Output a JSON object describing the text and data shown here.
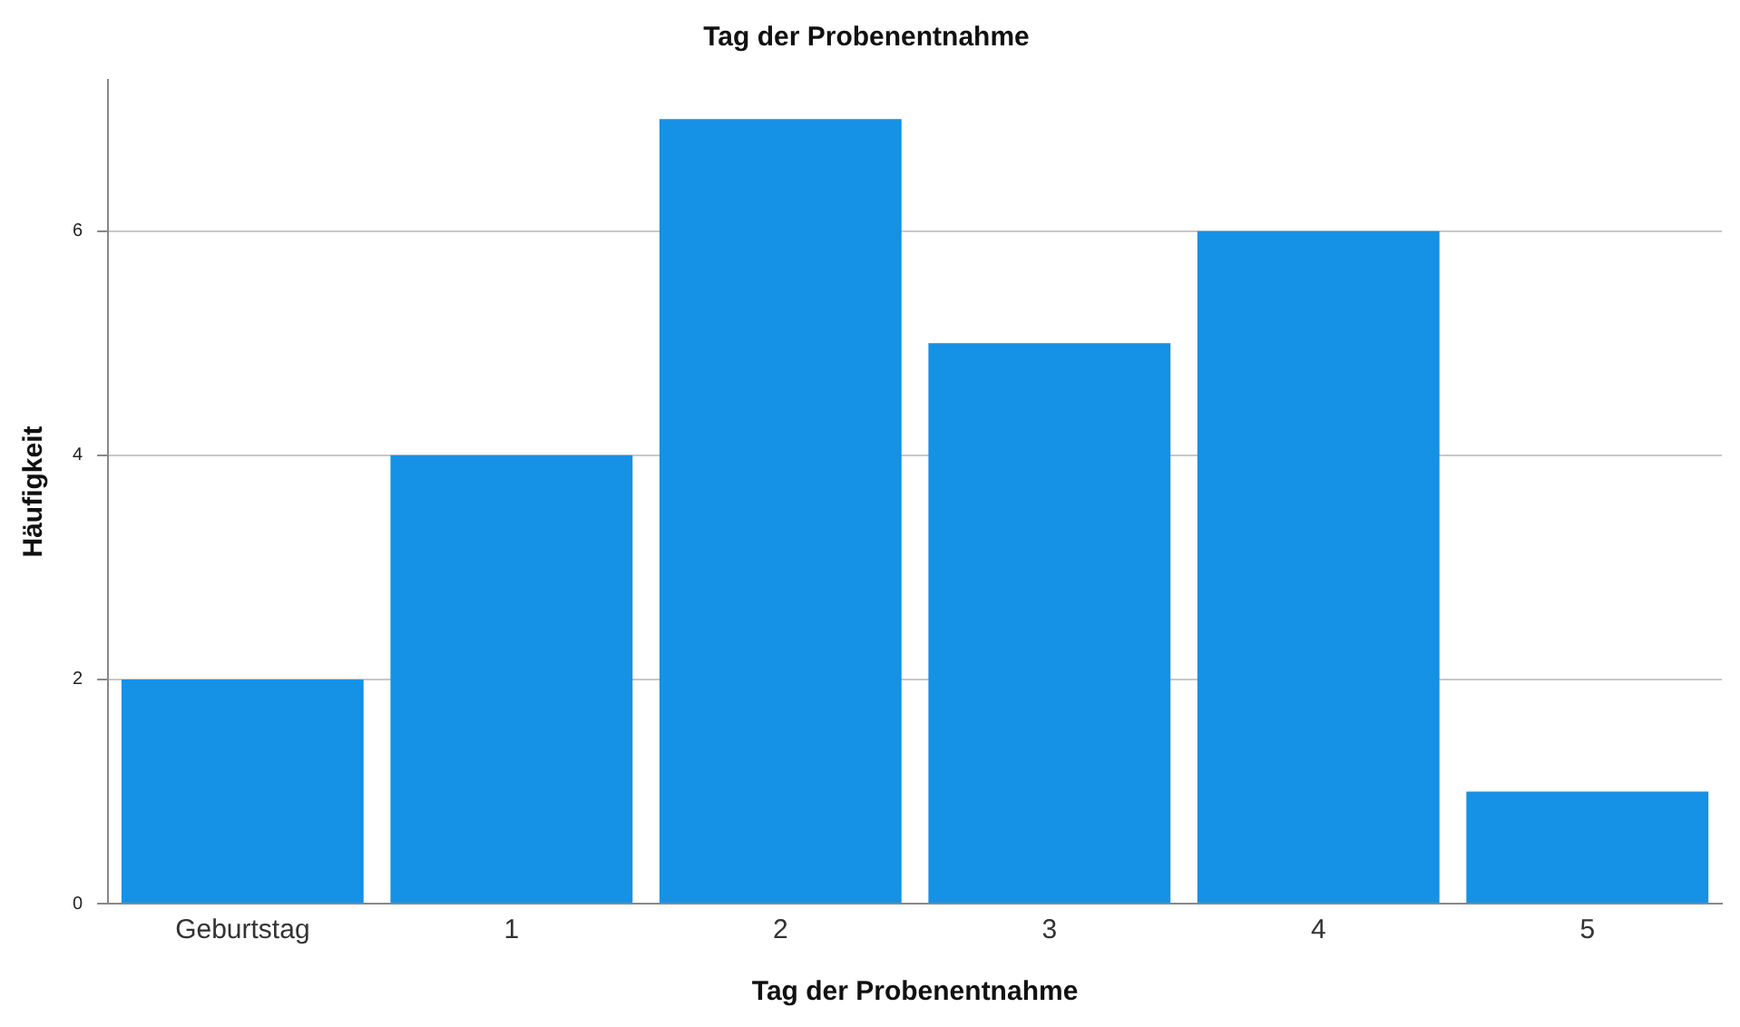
{
  "chart_data": {
    "type": "bar",
    "title": "Tag der Probenentnahme",
    "xlabel": "Tag der Probenentnahme",
    "ylabel": "Häufigkeit",
    "categories": [
      "Geburtstag",
      "1",
      "2",
      "3",
      "4",
      "5"
    ],
    "values": [
      2,
      4,
      7,
      5,
      6,
      1
    ],
    "color": "#1591e6",
    "ylim": [
      0,
      7.35
    ],
    "yticks": [
      0,
      2,
      4,
      6
    ],
    "grid": "y",
    "legend": false
  }
}
